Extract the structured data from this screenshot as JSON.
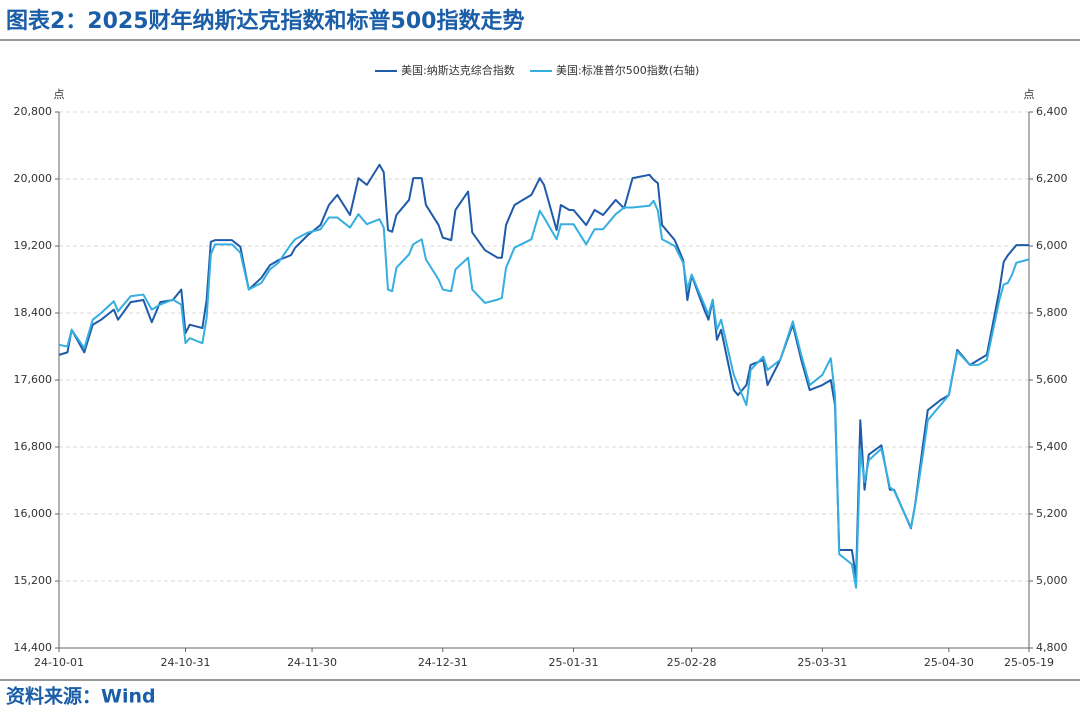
{
  "chart_data": {
    "type": "line",
    "title": "图表2：2025财年纳斯达克指数和标普500指数走势",
    "source": "资料来源：Wind",
    "y_unit": "点",
    "y2_unit": "点",
    "x": [
      "24-10-01",
      "24-10-03",
      "24-10-04",
      "24-10-07",
      "24-10-09",
      "24-10-11",
      "24-10-14",
      "24-10-15",
      "24-10-18",
      "24-10-21",
      "24-10-23",
      "24-10-25",
      "24-10-28",
      "24-10-30",
      "24-10-31",
      "24-11-01",
      "24-11-04",
      "24-11-05",
      "24-11-06",
      "24-11-07",
      "24-11-11",
      "24-11-13",
      "24-11-15",
      "24-11-18",
      "24-11-20",
      "24-11-22",
      "24-11-25",
      "24-11-26",
      "24-11-29",
      "24-12-02",
      "24-12-04",
      "24-12-06",
      "24-12-09",
      "24-12-11",
      "24-12-13",
      "24-12-16",
      "24-12-17",
      "24-12-18",
      "24-12-19",
      "24-12-20",
      "24-12-23",
      "24-12-24",
      "24-12-26",
      "24-12-27",
      "24-12-30",
      "24-12-31",
      "25-01-02",
      "25-01-03",
      "25-01-06",
      "25-01-07",
      "25-01-10",
      "25-01-13",
      "25-01-14",
      "25-01-15",
      "25-01-17",
      "25-01-21",
      "25-01-23",
      "25-01-24",
      "25-01-27",
      "25-01-28",
      "25-01-30",
      "25-01-31",
      "25-02-03",
      "25-02-05",
      "25-02-07",
      "25-02-10",
      "25-02-12",
      "25-02-14",
      "25-02-18",
      "25-02-19",
      "25-02-20",
      "25-02-21",
      "25-02-24",
      "25-02-26",
      "25-02-27",
      "25-02-28",
      "25-03-03",
      "25-03-04",
      "25-03-05",
      "25-03-06",
      "25-03-07",
      "25-03-10",
      "25-03-11",
      "25-03-13",
      "25-03-14",
      "25-03-17",
      "25-03-18",
      "25-03-21",
      "25-03-24",
      "25-03-26",
      "25-03-28",
      "25-03-31",
      "25-04-02",
      "25-04-03",
      "25-04-04",
      "25-04-07",
      "25-04-08",
      "25-04-09",
      "25-04-10",
      "25-04-11",
      "25-04-14",
      "25-04-16",
      "25-04-17",
      "25-04-21",
      "25-04-22",
      "25-04-24",
      "25-04-25",
      "25-04-28",
      "25-04-30",
      "25-05-02",
      "25-05-05",
      "25-05-07",
      "25-05-09",
      "25-05-12",
      "25-05-13",
      "25-05-14",
      "25-05-15",
      "25-05-16",
      "25-05-19"
    ],
    "series": [
      {
        "name": "美国:纳斯达克综合指数",
        "color": "#1f5ba8",
        "values": [
          17900,
          17930,
          18200,
          17930,
          18260,
          18320,
          18440,
          18320,
          18530,
          18555,
          18290,
          18530,
          18555,
          18680,
          18160,
          18260,
          18220,
          18555,
          19250,
          19270,
          19270,
          19190,
          18680,
          18820,
          18970,
          19030,
          19090,
          19180,
          19330,
          19450,
          19690,
          19810,
          19570,
          20010,
          19930,
          20170,
          20080,
          19390,
          19370,
          19570,
          19750,
          20010,
          20010,
          19690,
          19450,
          19300,
          19270,
          19630,
          19850,
          19360,
          19150,
          19060,
          19060,
          19450,
          19690,
          19810,
          20010,
          19930,
          19390,
          19690,
          19630,
          19630,
          19450,
          19630,
          19570,
          19750,
          19650,
          20010,
          20050,
          19990,
          19950,
          19450,
          19270,
          19030,
          18555,
          18850,
          18440,
          18320,
          18555,
          18080,
          18200,
          17480,
          17420,
          17540,
          17780,
          17840,
          17540,
          17840,
          18260,
          17840,
          17480,
          17540,
          17600,
          17300,
          15570,
          15570,
          15240,
          17120,
          16290,
          16710,
          16820,
          16290,
          16290,
          15830,
          16110,
          16880,
          17240,
          17360,
          17420,
          17960,
          17780,
          17840,
          17900,
          18680,
          19010,
          19090,
          19150,
          19210,
          19210
        ]
      },
      {
        "name": "美国:标准普尔500指数(右轴)",
        "color": "#35aee0",
        "axis": "y2",
        "values": [
          5705,
          5700,
          5750,
          5695,
          5780,
          5800,
          5835,
          5805,
          5850,
          5855,
          5810,
          5825,
          5840,
          5825,
          5710,
          5725,
          5710,
          5785,
          5975,
          6005,
          6005,
          5980,
          5870,
          5890,
          5930,
          5950,
          6005,
          6020,
          6040,
          6050,
          6085,
          6085,
          6055,
          6095,
          6065,
          6080,
          6055,
          5870,
          5865,
          5935,
          5975,
          6005,
          6020,
          5960,
          5900,
          5870,
          5865,
          5930,
          5965,
          5870,
          5830,
          5840,
          5845,
          5935,
          5995,
          6020,
          6105,
          6085,
          6020,
          6065,
          6065,
          6065,
          6005,
          6050,
          6050,
          6095,
          6115,
          6115,
          6120,
          6135,
          6105,
          6020,
          6000,
          5950,
          5870,
          5915,
          5825,
          5795,
          5840,
          5750,
          5780,
          5615,
          5585,
          5525,
          5630,
          5670,
          5630,
          5660,
          5775,
          5675,
          5585,
          5615,
          5665,
          5555,
          5080,
          5050,
          4980,
          5390,
          5295,
          5360,
          5395,
          5280,
          5270,
          5160,
          5225,
          5390,
          5480,
          5525,
          5555,
          5685,
          5645,
          5645,
          5660,
          5840,
          5885,
          5890,
          5915,
          5950,
          5960
        ]
      }
    ],
    "xlim": [
      "24-10-01",
      "25-05-19"
    ],
    "xticks": [
      "24-10-01",
      "24-10-31",
      "24-11-30",
      "24-12-31",
      "25-01-31",
      "25-02-28",
      "25-03-31",
      "25-04-30",
      "25-05-19"
    ],
    "ylim": [
      14400,
      20800
    ],
    "yticks": [
      {
        "value": 14400,
        "label": "14,400"
      },
      {
        "value": 15200,
        "label": "15,200"
      },
      {
        "value": 16000,
        "label": "16,000"
      },
      {
        "value": 16800,
        "label": "16,800"
      },
      {
        "value": 17600,
        "label": "17,600"
      },
      {
        "value": 18400,
        "label": "18,400"
      },
      {
        "value": 19200,
        "label": "19,200"
      },
      {
        "value": 20000,
        "label": "20,000"
      },
      {
        "value": 20800,
        "label": "20,800"
      }
    ],
    "y2lim": [
      4800,
      6400
    ],
    "y2ticks": [
      {
        "value": 4800,
        "label": "4,800"
      },
      {
        "value": 5000,
        "label": "5,000"
      },
      {
        "value": 5200,
        "label": "5,200"
      },
      {
        "value": 5400,
        "label": "5,400"
      },
      {
        "value": 5600,
        "label": "5,600"
      },
      {
        "value": 5800,
        "label": "5,800"
      },
      {
        "value": 6000,
        "label": "6,000"
      },
      {
        "value": 6200,
        "label": "6,200"
      },
      {
        "value": 6400,
        "label": "6,400"
      }
    ],
    "grid": true,
    "legend": "top"
  }
}
